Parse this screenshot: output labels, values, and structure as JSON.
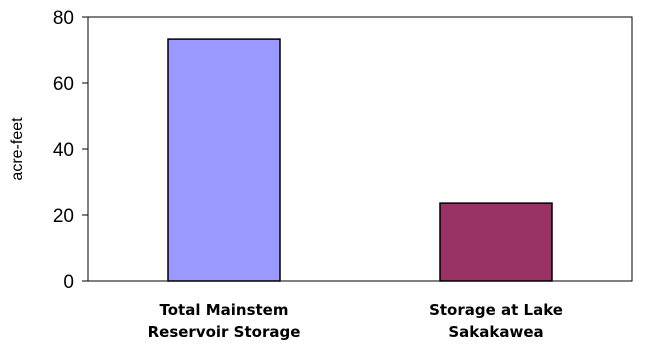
{
  "chart_data": {
    "type": "bar",
    "title": "",
    "xlabel": "",
    "ylabel": "acre-feet",
    "ylim": [
      0,
      80
    ],
    "yticks": [
      0,
      20,
      40,
      60,
      80
    ],
    "categories": [
      [
        "Total Mainstem",
        "Reservoir Storage"
      ],
      [
        "Storage at Lake",
        "Sakakawea"
      ]
    ],
    "values": [
      73.3,
      23.6
    ],
    "bar_colors": [
      "#9999ff",
      "#993366"
    ],
    "grid": false
  }
}
